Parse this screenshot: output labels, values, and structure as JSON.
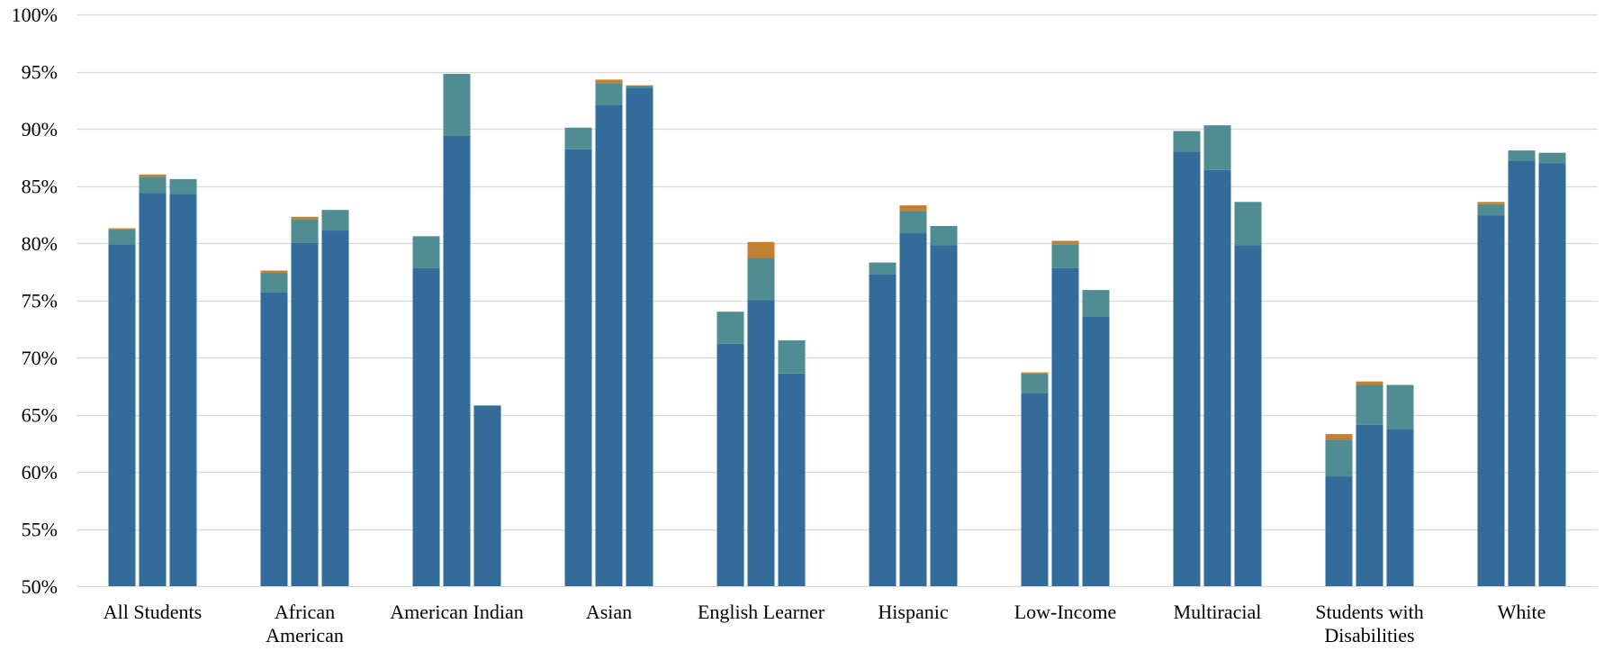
{
  "chart_data": {
    "type": "bar",
    "stacked": true,
    "grouped": true,
    "title": "",
    "xlabel": "",
    "ylabel": "",
    "ylim": [
      50,
      100
    ],
    "y_ticks": [
      "50%",
      "55%",
      "60%",
      "65%",
      "70%",
      "75%",
      "80%",
      "85%",
      "90%",
      "95%",
      "100%"
    ],
    "y_tick_values": [
      50,
      55,
      60,
      65,
      70,
      75,
      80,
      85,
      90,
      95,
      100
    ],
    "grid": true,
    "legend": "none",
    "categories": [
      [
        "All Students"
      ],
      [
        "African",
        "American"
      ],
      [
        "American Indian"
      ],
      [
        "Asian"
      ],
      [
        "English Learner"
      ],
      [
        "Hispanic"
      ],
      [
        "Low-Income"
      ],
      [
        "Multiracial"
      ],
      [
        "Students with",
        "Disabilities"
      ],
      [
        "White"
      ]
    ],
    "bars_per_category": 3,
    "segment_colors": [
      "#336b9b",
      "#4f8d93",
      "#c57f31"
    ],
    "groups": [
      [
        [
          79.9,
          81.2,
          81.3
        ],
        [
          84.4,
          85.8,
          86.0
        ],
        [
          84.3,
          85.6,
          85.6
        ]
      ],
      [
        [
          75.7,
          77.4,
          77.6
        ],
        [
          80.0,
          82.1,
          82.3
        ],
        [
          81.1,
          82.9,
          82.9
        ]
      ],
      [
        [
          77.8,
          80.6,
          80.6
        ],
        [
          89.4,
          94.8,
          94.8
        ],
        [
          65.8,
          65.8,
          65.8
        ]
      ],
      [
        [
          88.2,
          90.1,
          90.1
        ],
        [
          92.1,
          94.0,
          94.3
        ],
        [
          93.6,
          93.7,
          93.8
        ]
      ],
      [
        [
          71.2,
          74.0,
          74.0
        ],
        [
          75.0,
          78.7,
          80.1
        ],
        [
          68.6,
          71.5,
          71.5
        ]
      ],
      [
        [
          77.3,
          78.3,
          78.3
        ],
        [
          80.9,
          82.8,
          83.3
        ],
        [
          79.8,
          81.5,
          81.5
        ]
      ],
      [
        [
          66.9,
          68.6,
          68.7
        ],
        [
          77.8,
          79.9,
          80.2
        ],
        [
          73.6,
          75.9,
          75.9
        ]
      ],
      [
        [
          88.0,
          89.8,
          89.8
        ],
        [
          86.4,
          90.3,
          90.3
        ],
        [
          79.8,
          83.6,
          83.6
        ]
      ],
      [
        [
          59.6,
          62.8,
          63.3
        ],
        [
          64.1,
          67.6,
          67.9
        ],
        [
          63.7,
          67.6,
          67.6
        ]
      ],
      [
        [
          82.4,
          83.4,
          83.6
        ],
        [
          87.2,
          88.1,
          88.1
        ],
        [
          87.0,
          87.9,
          87.9
        ]
      ]
    ]
  }
}
